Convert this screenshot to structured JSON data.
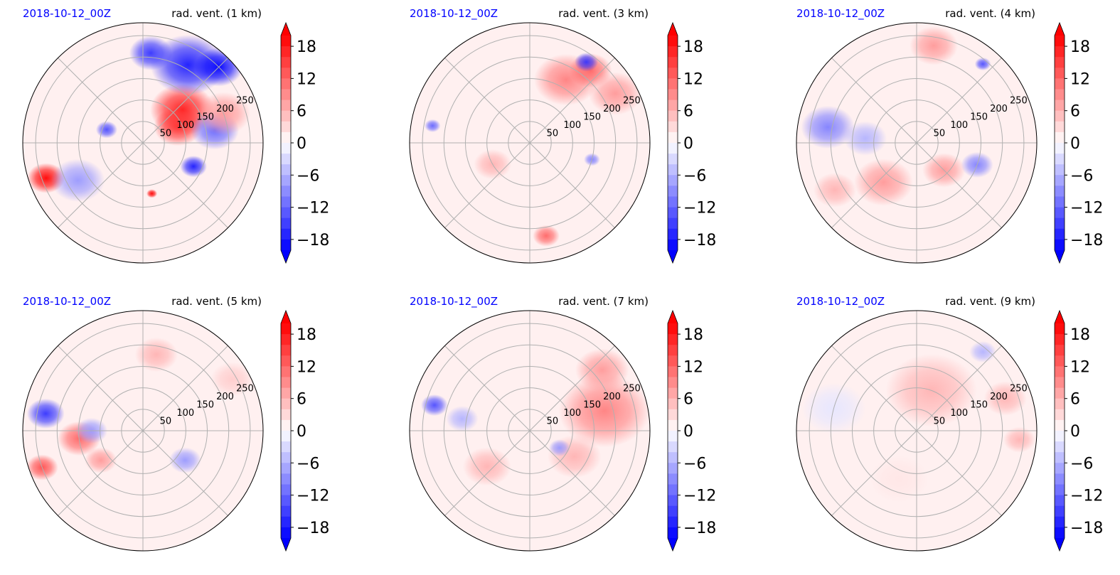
{
  "figure": {
    "colors": {
      "positive": "#ff0000",
      "negative": "#0000ff",
      "neutral": "#ffffff",
      "date": "#0000ff",
      "text": "#000000",
      "grid": "#b0b0b0"
    }
  },
  "chart_data": [
    {
      "type": "heatmap",
      "projection": "polar",
      "date_label": "2018-10-12_00Z",
      "title": "rad. vent. (1 km)",
      "radial_ticks": [
        "50",
        "100",
        "150",
        "200",
        "250"
      ],
      "colorbar": {
        "ticks": [
          "18",
          "12",
          "6",
          "0",
          "−6",
          "−12",
          "−18"
        ],
        "range": [
          -20,
          20
        ],
        "extend": "both"
      },
      "features": [
        {
          "r": 120,
          "theta": 40,
          "value": 18,
          "size": 60
        },
        {
          "r": 90,
          "theta": 25,
          "value": 16,
          "size": 45
        },
        {
          "r": 210,
          "theta": 60,
          "value": -18,
          "size": 70
        },
        {
          "r": 250,
          "theta": 45,
          "value": -20,
          "size": 45
        },
        {
          "r": 170,
          "theta": 10,
          "value": -12,
          "size": 45
        },
        {
          "r": 130,
          "theta": -25,
          "value": -18,
          "size": 25
        },
        {
          "r": 210,
          "theta": 85,
          "value": -16,
          "size": 40
        },
        {
          "r": 240,
          "theta": 200,
          "value": 20,
          "size": 35
        },
        {
          "r": 175,
          "theta": 210,
          "value": -8,
          "size": 50
        },
        {
          "r": 120,
          "theta": -80,
          "value": 20,
          "size": 10
        },
        {
          "r": 90,
          "theta": 160,
          "value": -14,
          "size": 20
        },
        {
          "r": 200,
          "theta": 20,
          "value": 8,
          "size": 50
        }
      ]
    },
    {
      "type": "heatmap",
      "projection": "polar",
      "date_label": "2018-10-12_00Z",
      "title": "rad. vent. (3 km)",
      "radial_ticks": [
        "50",
        "100",
        "150",
        "200",
        "250"
      ],
      "colorbar": {
        "ticks": [
          "18",
          "12",
          "6",
          "0",
          "−6",
          "−12",
          "−18"
        ],
        "range": [
          -20,
          20
        ],
        "extend": "both"
      },
      "features": [
        {
          "r": 170,
          "theta": 60,
          "value": 10,
          "size": 60
        },
        {
          "r": 220,
          "theta": 50,
          "value": 12,
          "size": 40
        },
        {
          "r": 230,
          "theta": 30,
          "value": 8,
          "size": 50
        },
        {
          "r": 230,
          "theta": 55,
          "value": -16,
          "size": 22
        },
        {
          "r": 100,
          "theta": -150,
          "value": 6,
          "size": 35
        },
        {
          "r": 220,
          "theta": -80,
          "value": 12,
          "size": 25
        },
        {
          "r": 150,
          "theta": -15,
          "value": -10,
          "size": 15
        },
        {
          "r": 230,
          "theta": 170,
          "value": -12,
          "size": 15
        }
      ]
    },
    {
      "type": "heatmap",
      "projection": "polar",
      "date_label": "2018-10-12_00Z",
      "title": "rad. vent. (4 km)",
      "radial_ticks": [
        "50",
        "100",
        "150",
        "200",
        "250"
      ],
      "colorbar": {
        "ticks": [
          "18",
          "12",
          "6",
          "0",
          "−6",
          "−12",
          "−18"
        ],
        "range": [
          -20,
          20
        ],
        "extend": "both"
      },
      "features": [
        {
          "r": 230,
          "theta": 80,
          "value": 8,
          "size": 45
        },
        {
          "r": 210,
          "theta": 170,
          "value": -10,
          "size": 50
        },
        {
          "r": 120,
          "theta": -130,
          "value": 8,
          "size": 55
        },
        {
          "r": 90,
          "theta": -45,
          "value": 8,
          "size": 40
        },
        {
          "r": 220,
          "theta": -150,
          "value": 6,
          "size": 40
        },
        {
          "r": 120,
          "theta": 175,
          "value": -6,
          "size": 40
        },
        {
          "r": 150,
          "theta": -20,
          "value": -10,
          "size": 30
        },
        {
          "r": 240,
          "theta": 50,
          "value": -14,
          "size": 15
        }
      ]
    },
    {
      "type": "heatmap",
      "projection": "polar",
      "date_label": "2018-10-12_00Z",
      "title": "rad. vent. (5 km)",
      "radial_ticks": [
        "50",
        "100",
        "150",
        "200",
        "250"
      ],
      "colorbar": {
        "ticks": [
          "18",
          "12",
          "6",
          "0",
          "−6",
          "−12",
          "−18"
        ],
        "range": [
          -20,
          20
        ],
        "extend": "both"
      },
      "features": [
        {
          "r": 230,
          "theta": 170,
          "value": -16,
          "size": 35
        },
        {
          "r": 150,
          "theta": 187,
          "value": 12,
          "size": 40
        },
        {
          "r": 120,
          "theta": -145,
          "value": 8,
          "size": 30
        },
        {
          "r": 180,
          "theta": 80,
          "value": 6,
          "size": 40
        },
        {
          "r": 120,
          "theta": -35,
          "value": -8,
          "size": 30
        },
        {
          "r": 240,
          "theta": 30,
          "value": 4,
          "size": 40
        },
        {
          "r": 250,
          "theta": 200,
          "value": 14,
          "size": 30
        },
        {
          "r": 120,
          "theta": 180,
          "value": -8,
          "size": 30
        }
      ]
    },
    {
      "type": "heatmap",
      "projection": "polar",
      "date_label": "2018-10-12_00Z",
      "title": "rad. vent. (7 km)",
      "radial_ticks": [
        "50",
        "100",
        "150",
        "200",
        "250"
      ],
      "colorbar": {
        "ticks": [
          "18",
          "12",
          "6",
          "0",
          "−6",
          "−12",
          "−18"
        ],
        "range": [
          -20,
          20
        ],
        "extend": "both"
      },
      "features": [
        {
          "r": 180,
          "theta": 15,
          "value": 10,
          "size": 85
        },
        {
          "r": 220,
          "theta": 40,
          "value": 8,
          "size": 50
        },
        {
          "r": 120,
          "theta": -30,
          "value": 6,
          "size": 50
        },
        {
          "r": 230,
          "theta": 165,
          "value": -14,
          "size": 25
        },
        {
          "r": 160,
          "theta": 170,
          "value": -6,
          "size": 30
        },
        {
          "r": 130,
          "theta": -140,
          "value": 6,
          "size": 45
        },
        {
          "r": 80,
          "theta": -30,
          "value": -8,
          "size": 20
        }
      ]
    },
    {
      "type": "heatmap",
      "projection": "polar",
      "date_label": "2018-10-12_00Z",
      "title": "rad. vent. (9 km)",
      "radial_ticks": [
        "50",
        "100",
        "150",
        "200",
        "250"
      ],
      "colorbar": {
        "ticks": [
          "18",
          "12",
          "6",
          "0",
          "−6",
          "−12",
          "−18"
        ],
        "range": [
          -20,
          20
        ],
        "extend": "both"
      },
      "features": [
        {
          "r": 100,
          "theta": 70,
          "value": 6,
          "size": 85
        },
        {
          "r": 220,
          "theta": 20,
          "value": 6,
          "size": 40
        },
        {
          "r": 240,
          "theta": 50,
          "value": -6,
          "size": 25
        },
        {
          "r": 240,
          "theta": -5,
          "value": 6,
          "size": 30
        },
        {
          "r": 200,
          "theta": 165,
          "value": -2,
          "size": 60
        },
        {
          "r": 120,
          "theta": -110,
          "value": 2,
          "size": 55
        }
      ]
    }
  ]
}
